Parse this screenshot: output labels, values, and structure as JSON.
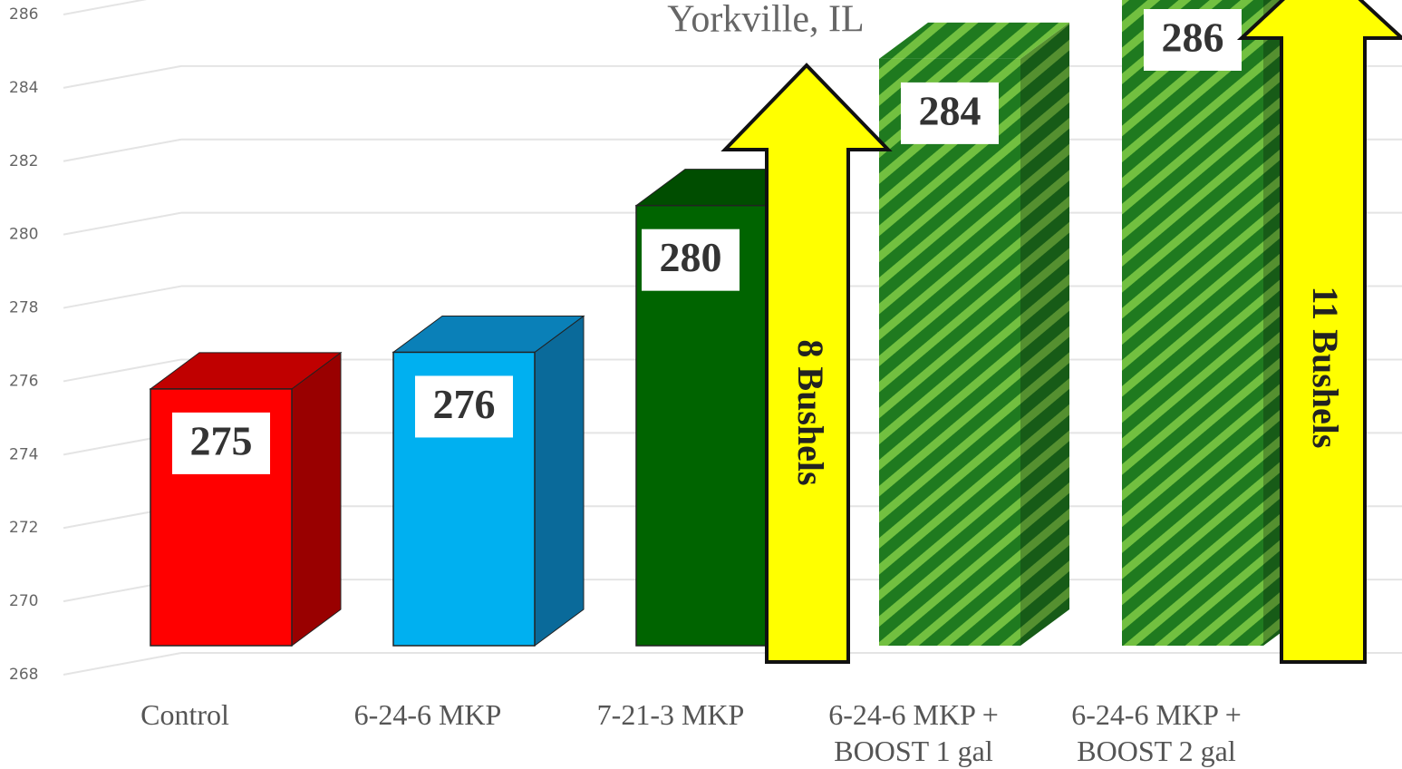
{
  "chart_data": {
    "type": "bar3d",
    "title": "Yorkville, IL",
    "categories": [
      "Control",
      "6-24-6 MKP",
      "7-21-3 MKP",
      "6-24-6 MKP +\nBOOST 1 gal",
      "6-24-6 MKP +\nBOOST 2 gal"
    ],
    "values": [
      275,
      276,
      280,
      284,
      286
    ],
    "colors": [
      "#ff0000",
      "#00b0f0",
      "#006400",
      "striped",
      "striped"
    ],
    "ylim": [
      268,
      286
    ],
    "yticks": [
      268,
      270,
      272,
      274,
      276,
      278,
      280,
      282,
      284,
      286
    ],
    "grid": true,
    "annotations": [
      "8 Bushels",
      "11 Bushels"
    ]
  }
}
